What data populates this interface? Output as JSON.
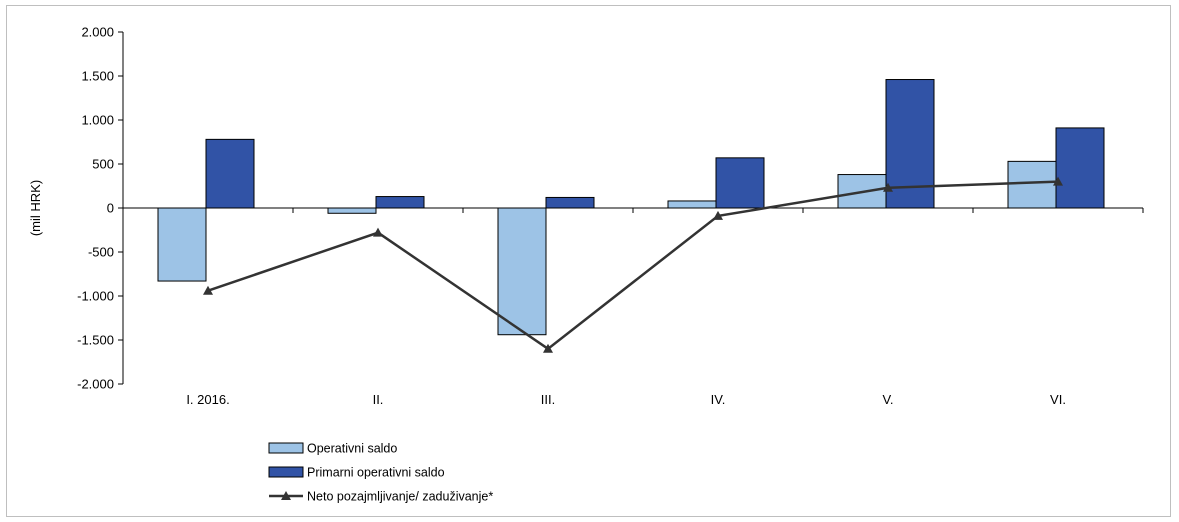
{
  "chart_data": {
    "type": "bar",
    "categories": [
      "I. 2016.",
      "II.",
      "III.",
      "IV.",
      "V.",
      "VI."
    ],
    "ylabel": "(mil HRK)",
    "ylim": [
      -2000,
      2000
    ],
    "yticks": [
      2000,
      1500,
      1000,
      500,
      0,
      -500,
      -1000,
      -1500,
      -2000
    ],
    "ytick_labels": [
      "2.000",
      "1.500",
      "1.000",
      "500",
      "0",
      "-500",
      "-1.000",
      "-1.500",
      "-2.000"
    ],
    "grid": false,
    "legend_position": "bottom-left",
    "series": [
      {
        "name": "Operativni saldo",
        "kind": "bar",
        "color": "#9dc3e6",
        "values": [
          -830,
          -60,
          -1440,
          80,
          380,
          530
        ]
      },
      {
        "name": "Primarni operativni saldo",
        "kind": "bar",
        "color": "#3153a6",
        "values": [
          780,
          130,
          120,
          570,
          1460,
          910
        ]
      },
      {
        "name": "Neto pozajmljivanje/ zaduživanje*",
        "kind": "line",
        "marker": "triangle",
        "color": "#333333",
        "values": [
          -940,
          -280,
          -1600,
          -90,
          230,
          300
        ]
      }
    ]
  }
}
